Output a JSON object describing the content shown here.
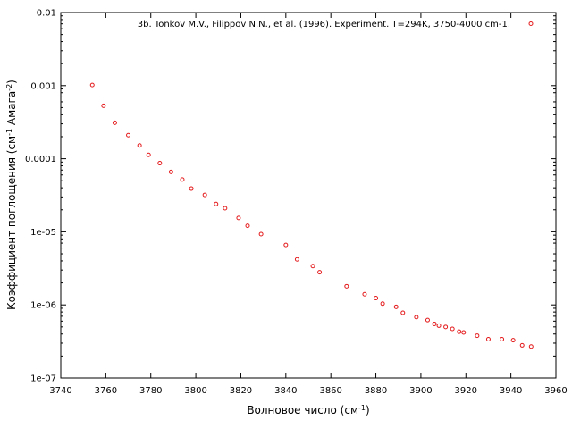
{
  "chart_data": {
    "type": "scatter",
    "xlabel": "Волновое число (см",
    "xlabel_sup": "-1",
    "xlabel_end": ")",
    "ylabel": "Коэффициент поглощения (см",
    "ylabel_sup1": "-1",
    "ylabel_mid": " Амага",
    "ylabel_sup2": "-2",
    "ylabel_end": ")",
    "xlim": [
      3740,
      3960
    ],
    "ylim": [
      1e-07,
      0.01
    ],
    "yscale": "log",
    "grid": false,
    "legend_position": "top-right",
    "x_ticks": [
      "3740",
      "3760",
      "3780",
      "3800",
      "3820",
      "3840",
      "3860",
      "3880",
      "3900",
      "3920",
      "3940",
      "3960"
    ],
    "y_ticks": [
      "1e-07",
      "1e-06",
      "1e-05",
      "0.0001",
      "0.001",
      "0.01"
    ],
    "series": [
      {
        "name": "3b. Tonkov M.V., Filippov N.N., et al. (1996). Experiment. T=294K, 3750-4000 cm-1.",
        "color": "#e41a1c",
        "marker": "open-circle",
        "x": [
          3754,
          3759,
          3764,
          3770,
          3775,
          3779,
          3784,
          3789,
          3794,
          3798,
          3804,
          3809,
          3813,
          3819,
          3823,
          3829,
          3840,
          3845,
          3852,
          3855,
          3867,
          3875,
          3880,
          3883,
          3889,
          3892,
          3898,
          3903,
          3906,
          3908,
          3911,
          3914,
          3917,
          3919,
          3925,
          3930,
          3936,
          3941,
          3945,
          3949
        ],
        "y": [
          0.00102,
          0.00053,
          0.00031,
          0.00021,
          0.000152,
          0.000113,
          8.7e-05,
          6.6e-05,
          5.2e-05,
          3.9e-05,
          3.2e-05,
          2.4e-05,
          2.1e-05,
          1.55e-05,
          1.21e-05,
          9.3e-06,
          6.6e-06,
          4.2e-06,
          3.4e-06,
          2.8e-06,
          1.8e-06,
          1.4e-06,
          1.24e-06,
          1.04e-06,
          9.4e-07,
          7.8e-07,
          6.8e-07,
          6.2e-07,
          5.5e-07,
          5.2e-07,
          5e-07,
          4.7e-07,
          4.3e-07,
          4.2e-07,
          3.8e-07,
          3.4e-07,
          3.4e-07,
          3.3e-07,
          2.8e-07,
          2.7e-07
        ]
      }
    ]
  }
}
